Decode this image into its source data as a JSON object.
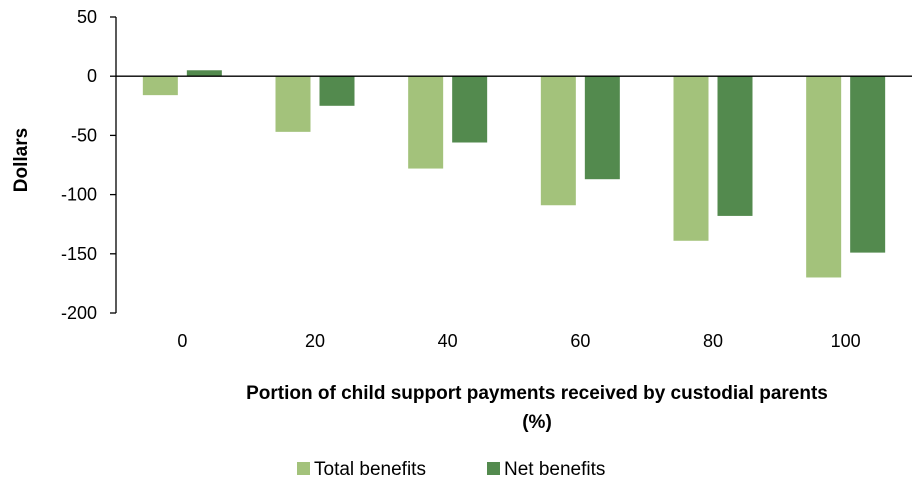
{
  "chart_data": {
    "type": "bar",
    "categories": [
      "0",
      "20",
      "40",
      "60",
      "80",
      "100"
    ],
    "series": [
      {
        "name": "Total benefits",
        "values": [
          -16,
          -47,
          -78,
          -109,
          -139,
          -170
        ],
        "color": "#a3c27b"
      },
      {
        "name": "Net benefits",
        "values": [
          5,
          -25,
          -56,
          -87,
          -118,
          -149
        ],
        "color": "#538a4e"
      }
    ],
    "title": "",
    "xlabel_lines": [
      "Portion of child support payments received by custodial parents",
      "(%)"
    ],
    "ylabel": "Dollars",
    "ylim": [
      -200,
      50
    ],
    "yticks": [
      "50",
      "0",
      "-50",
      "-100",
      "-150",
      "-200"
    ],
    "grid": false,
    "legend_position": "bottom-center"
  }
}
